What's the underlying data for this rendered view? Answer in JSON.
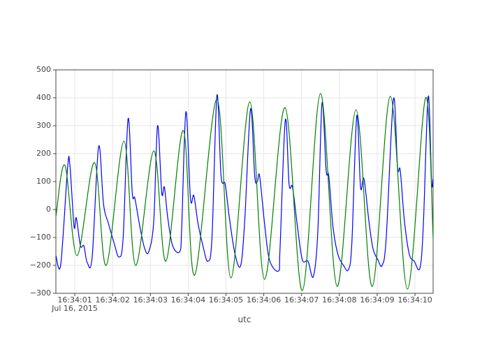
{
  "chart_data": {
    "type": "line",
    "x_label": "utc",
    "x_date_label": "Jul 16, 2015",
    "xlim": [
      "16:34:00.50",
      "16:34:10.48"
    ],
    "xticks": [
      {
        "value": "16:34:01.00",
        "label": "16:34:01"
      },
      {
        "value": "16:34:02.00",
        "label": "16:34:02"
      },
      {
        "value": "16:34:03.00",
        "label": "16:34:03"
      },
      {
        "value": "16:34:04.00",
        "label": "16:34:04"
      },
      {
        "value": "16:34:05.00",
        "label": "16:34:05"
      },
      {
        "value": "16:34:06.00",
        "label": "16:34:06"
      },
      {
        "value": "16:34:07.00",
        "label": "16:34:07"
      },
      {
        "value": "16:34:08.00",
        "label": "16:34:08"
      },
      {
        "value": "16:34:09.00",
        "label": "16:34:09"
      },
      {
        "value": "16:34:10.00",
        "label": "16:34:10"
      }
    ],
    "ylim": [
      -300,
      500
    ],
    "yticks": [
      {
        "value": -300,
        "label": "−300"
      },
      {
        "value": -200,
        "label": "−200"
      },
      {
        "value": -100,
        "label": "−100"
      },
      0,
      100,
      200,
      300,
      400,
      500
    ],
    "grid": true,
    "series": [
      {
        "color": "#0000ff",
        "x": [
          "16:34:00.50",
          "16:34:00.63",
          "16:34:00.81",
          "16:34:00.87",
          "16:34:00.98",
          "16:34:01.04",
          "16:34:01.15",
          "16:34:01.24",
          "16:34:01.33",
          "16:34:01.46",
          "16:34:01.63",
          "16:34:01.76",
          "16:34:01.89",
          "16:34:02.04",
          "16:34:02.17",
          "16:34:02.28",
          "16:34:02.41",
          "16:34:02.52",
          "16:34:02.59",
          "16:34:02.72",
          "16:34:02.85",
          "16:34:02.96",
          "16:34:03.09",
          "16:34:03.19",
          "16:34:03.30",
          "16:34:03.37",
          "16:34:03.46",
          "16:34:03.59",
          "16:34:03.78",
          "16:34:03.83",
          "16:34:03.94",
          "16:34:04.06",
          "16:34:04.15",
          "16:34:04.26",
          "16:34:04.39",
          "16:34:04.52",
          "16:34:04.63",
          "16:34:04.76",
          "16:34:04.87",
          "16:34:04.98",
          "16:34:05.09",
          "16:34:05.24",
          "16:34:05.39",
          "16:34:05.50",
          "16:34:05.65",
          "16:34:05.76",
          "16:34:05.83",
          "16:34:05.89",
          "16:34:06.02",
          "16:34:06.15",
          "16:34:06.39",
          "16:34:06.43",
          "16:34:06.57",
          "16:34:06.67",
          "16:34:06.76",
          "16:34:06.89",
          "16:34:07.02",
          "16:34:07.17",
          "16:34:07.31",
          "16:34:07.43",
          "16:34:07.54",
          "16:34:07.65",
          "16:34:07.72",
          "16:34:07.83",
          "16:34:07.96",
          "16:34:08.11",
          "16:34:08.24",
          "16:34:08.33",
          "16:34:08.46",
          "16:34:08.56",
          "16:34:08.65",
          "16:34:08.78",
          "16:34:08.89",
          "16:34:09.02",
          "16:34:09.13",
          "16:34:09.24",
          "16:34:09.43",
          "16:34:09.54",
          "16:34:09.61",
          "16:34:09.72",
          "16:34:09.85",
          "16:34:09.98",
          "16:34:10.13",
          "16:34:10.22",
          "16:34:10.35",
          "16:34:10.44",
          "16:34:10.48"
        ],
        "values": [
          -165,
          -195,
          150,
          160,
          -60,
          -30,
          -130,
          -130,
          -190,
          -170,
          225,
          20,
          -50,
          -120,
          -170,
          -100,
          325,
          60,
          40,
          -60,
          -140,
          -150,
          -40,
          300,
          60,
          80,
          -30,
          -130,
          -150,
          -60,
          350,
          40,
          50,
          -50,
          -130,
          -185,
          -100,
          408,
          120,
          90,
          -30,
          -160,
          -200,
          -30,
          360,
          120,
          100,
          120,
          -50,
          -180,
          -220,
          -140,
          320,
          90,
          80,
          -60,
          -180,
          -185,
          -240,
          -80,
          380,
          140,
          120,
          -60,
          -160,
          -200,
          -215,
          -120,
          335,
          80,
          110,
          -40,
          -140,
          -180,
          -200,
          -100,
          395,
          150,
          140,
          -40,
          -160,
          -185,
          -210,
          -60,
          405,
          100,
          110
        ]
      },
      {
        "color": "#008000",
        "x": [
          "16:34:00.50",
          "16:34:00.74",
          "16:34:01.06",
          "16:34:01.52",
          "16:34:01.83",
          "16:34:02.30",
          "16:34:02.61",
          "16:34:03.09",
          "16:34:03.41",
          "16:34:03.87",
          "16:34:04.17",
          "16:34:04.76",
          "16:34:05.13",
          "16:34:05.63",
          "16:34:06.02",
          "16:34:06.56",
          "16:34:07.02",
          "16:34:07.50",
          "16:34:07.94",
          "16:34:08.44",
          "16:34:08.87",
          "16:34:09.35",
          "16:34:09.80",
          "16:34:10.28",
          "16:34:10.48"
        ],
        "values": [
          -25,
          158,
          -165,
          168,
          -200,
          245,
          -200,
          210,
          -185,
          283,
          -235,
          395,
          -245,
          385,
          -250,
          365,
          -290,
          415,
          -275,
          357,
          -275,
          405,
          -285,
          400,
          -100
        ]
      }
    ]
  }
}
